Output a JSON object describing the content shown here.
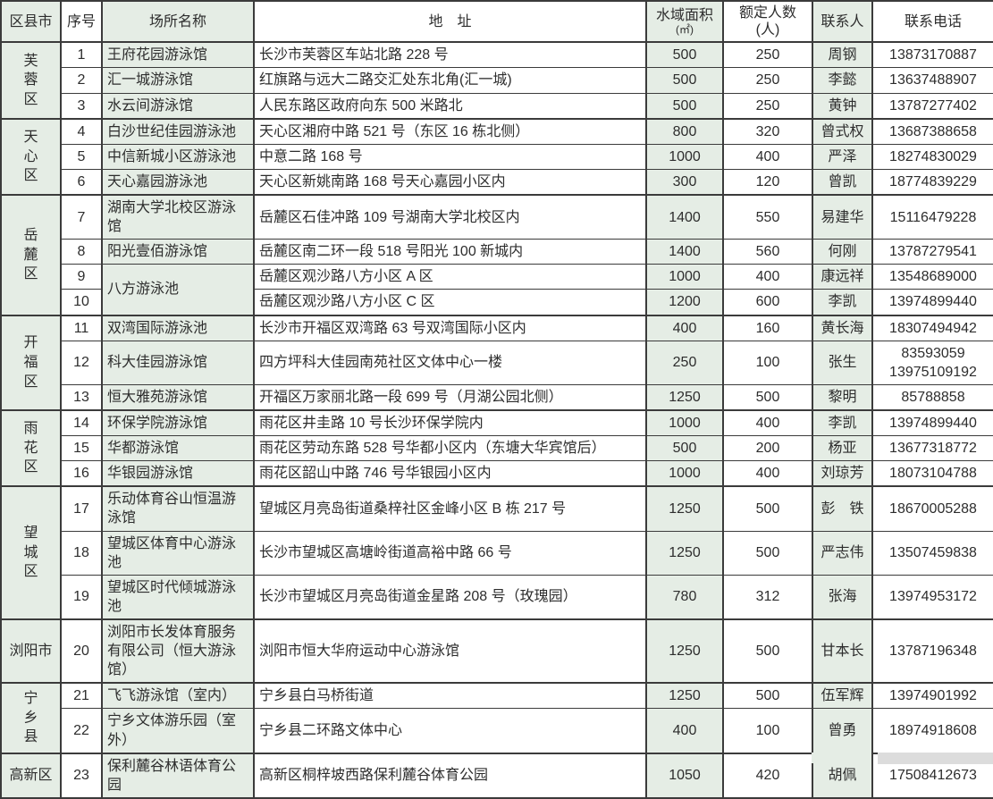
{
  "colors": {
    "column_shade": "#e5ede5",
    "border": "#3b3b3b",
    "text": "#2d2d2d"
  },
  "table": {
    "header": {
      "district": "区县市",
      "no": "序号",
      "name": "场所名称",
      "address": "地　址",
      "area_line1": "水域面积",
      "area_line2": "(㎡)",
      "capacity_line1": "额定人数",
      "capacity_line2": "(人)",
      "contact": "联系人",
      "phone": "联系电话"
    },
    "groups": [
      {
        "district": "芙蓉区",
        "vertical": true,
        "rows": [
          {
            "no": "1",
            "name": "王府花园游泳馆",
            "address": "长沙市芙蓉区车站北路 228 号",
            "area": "500",
            "capacity": "250",
            "contact": "周钢",
            "phone": "13873170887"
          },
          {
            "no": "2",
            "name": "汇一城游泳馆",
            "address": "红旗路与远大二路交汇处东北角(汇一城)",
            "area": "500",
            "capacity": "250",
            "contact": "李懿",
            "phone": "13637488907"
          },
          {
            "no": "3",
            "name": "水云间游泳馆",
            "address": "人民东路区政府向东 500 米路北",
            "area": "500",
            "capacity": "250",
            "contact": "黄钟",
            "phone": "13787277402"
          }
        ]
      },
      {
        "district": "天心区",
        "vertical": true,
        "rows": [
          {
            "no": "4",
            "name": "白沙世纪佳园游泳池",
            "address": "天心区湘府中路 521 号（东区 16 栋北侧）",
            "area": "800",
            "capacity": "320",
            "contact": "曾式权",
            "phone": "13687388658"
          },
          {
            "no": "5",
            "name": "中信新城小区游泳池",
            "address": "中意二路 168 号",
            "area": "1000",
            "capacity": "400",
            "contact": "严泽",
            "phone": "18274830029"
          },
          {
            "no": "6",
            "name": "天心嘉园游泳池",
            "address": "天心区新姚南路 168 号天心嘉园小区内",
            "area": "300",
            "capacity": "120",
            "contact": "曾凯",
            "phone": "18774839229"
          }
        ]
      },
      {
        "district": "岳麓区",
        "vertical": true,
        "rows": [
          {
            "no": "7",
            "name": "湖南大学北校区游泳馆",
            "address": "岳麓区石佳冲路 109 号湖南大学北校区内",
            "area": "1400",
            "capacity": "550",
            "contact": "易建华",
            "phone": "15116479228"
          },
          {
            "no": "8",
            "name": "阳光壹佰游泳馆",
            "address": "岳麓区南二环一段 518 号阳光 100 新城内",
            "area": "1400",
            "capacity": "560",
            "contact": "何刚",
            "phone": "13787279541"
          },
          {
            "no": "9",
            "name": "八方游泳池",
            "name_rowspan": 2,
            "address": "岳麓区观沙路八方小区 A 区",
            "area": "1000",
            "capacity": "400",
            "contact": "康远祥",
            "phone": "13548689000"
          },
          {
            "no": "10",
            "name": null,
            "address": "岳麓区观沙路八方小区 C 区",
            "area": "1200",
            "capacity": "600",
            "contact": "李凯",
            "phone": "13974899440"
          }
        ]
      },
      {
        "district": "开福区",
        "vertical": true,
        "rows": [
          {
            "no": "11",
            "name": "双湾国际游泳池",
            "address": "长沙市开福区双湾路 63 号双湾国际小区内",
            "area": "400",
            "capacity": "160",
            "contact": "黄长海",
            "phone": "18307494942"
          },
          {
            "no": "12",
            "name": "科大佳园游泳馆",
            "address": "四方坪科大佳园南苑社区文体中心一楼",
            "area": "250",
            "capacity": "100",
            "contact": "张生",
            "phone": "83593059\n13975109192"
          },
          {
            "no": "13",
            "name": "恒大雅苑游泳馆",
            "address": "开福区万家丽北路一段 699 号（月湖公园北侧）",
            "area": "1250",
            "capacity": "500",
            "contact": "黎明",
            "phone": "85788858"
          }
        ]
      },
      {
        "district": "雨花区",
        "vertical": true,
        "rows": [
          {
            "no": "14",
            "name": "环保学院游泳馆",
            "address": "雨花区井圭路 10 号长沙环保学院内",
            "area": "1000",
            "capacity": "400",
            "contact": "李凯",
            "phone": "13974899440"
          },
          {
            "no": "15",
            "name": "华都游泳馆",
            "address": "雨花区劳动东路 528 号华都小区内（东塘大华宾馆后）",
            "area": "500",
            "capacity": "200",
            "contact": "杨亚",
            "phone": "13677318772"
          },
          {
            "no": "16",
            "name": "华银园游泳馆",
            "address": "雨花区韶山中路 746 号华银园小区内",
            "area": "1000",
            "capacity": "400",
            "contact": "刘琼芳",
            "phone": "18073104788"
          }
        ]
      },
      {
        "district": "望城区",
        "vertical": true,
        "rows": [
          {
            "no": "17",
            "name": "乐动体育谷山恒温游泳馆",
            "address": "望城区月亮岛街道桑梓社区金峰小区 B 栋 217 号",
            "area": "1250",
            "capacity": "500",
            "contact": "彭　铁",
            "phone": "18670005288"
          },
          {
            "no": "18",
            "name": "望城区体育中心游泳池",
            "address": "长沙市望城区高塘岭街道高裕中路 66 号",
            "area": "1250",
            "capacity": "500",
            "contact": "严志伟",
            "phone": "13507459838"
          },
          {
            "no": "19",
            "name": "望城区时代倾城游泳池",
            "address": "长沙市望城区月亮岛街道金星路 208 号（玫瑰园）",
            "area": "780",
            "capacity": "312",
            "contact": "张海",
            "phone": "13974953172"
          }
        ]
      },
      {
        "district": "浏阳市",
        "vertical": false,
        "rows": [
          {
            "no": "20",
            "name": "浏阳市长发体育服务有限公司（恒大游泳馆）",
            "address": "浏阳市恒大华府运动中心游泳馆",
            "area": "1250",
            "capacity": "500",
            "contact": "甘本长",
            "phone": "13787196348"
          }
        ]
      },
      {
        "district": "宁乡县",
        "vertical": true,
        "rows": [
          {
            "no": "21",
            "name": "飞飞游泳馆（室内）",
            "address": "宁乡县白马桥街道",
            "area": "1250",
            "capacity": "500",
            "contact": "伍军辉",
            "phone": "13974901992"
          },
          {
            "no": "22",
            "name": "宁乡文体游乐园（室外）",
            "address": "宁乡县二环路文体中心",
            "area": "400",
            "capacity": "100",
            "contact": "曾勇",
            "phone": "18974918608"
          }
        ]
      },
      {
        "district": "高新区",
        "vertical": false,
        "rows": [
          {
            "no": "23",
            "name": "保利麓谷林语体育公园",
            "address": "高新区桐梓坡西路保利麓谷体育公园",
            "area": "1050",
            "capacity": "420",
            "contact": "胡佩",
            "phone": "17508412673"
          }
        ]
      }
    ]
  }
}
